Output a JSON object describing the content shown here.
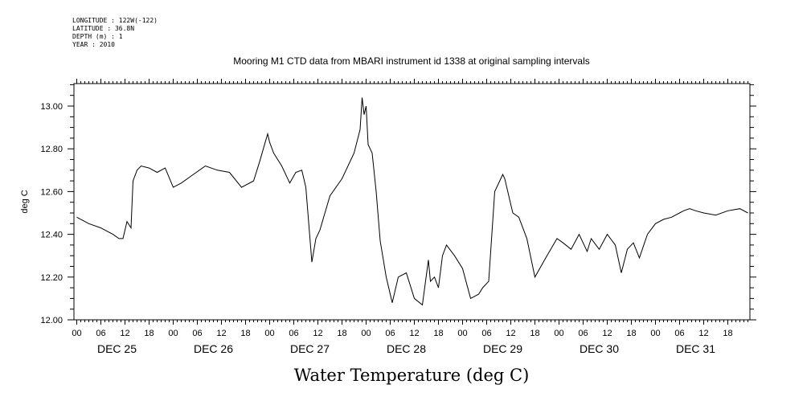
{
  "meta": {
    "longitude": "LONGITUDE : 122W(-122)",
    "latitude": "LATITUDE : 36.8N",
    "depth": "DEPTH (m) : 1",
    "year": "YEAR : 2010"
  },
  "chart_data": {
    "type": "line",
    "title": "Mooring M1 CTD data from MBARI instrument id 1338 at original sampling intervals",
    "ylabel": "deg C",
    "xlabel": "Water Temperature (deg C)",
    "ylim": [
      12.0,
      13.1
    ],
    "yticks": [
      "12.00",
      "12.20",
      "12.40",
      "12.60",
      "12.80",
      "13.00"
    ],
    "xlim": [
      "2010-12-25 00:00",
      "2010-12-31 23:00"
    ],
    "hour_ticks": [
      "00",
      "06",
      "12",
      "18"
    ],
    "day_labels": [
      "DEC 25",
      "DEC 26",
      "DEC 27",
      "DEC 28",
      "DEC 29",
      "DEC 30",
      "DEC 31"
    ],
    "grid": false,
    "series": [
      {
        "x": [
          "2010-12-25 00:00",
          "2010-12-25 03:00",
          "2010-12-25 06:00",
          "2010-12-25 09:00",
          "2010-12-25 10:30",
          "2010-12-25 11:30",
          "2010-12-25 12:30",
          "2010-12-25 13:30",
          "2010-12-25 14:00",
          "2010-12-25 15:00",
          "2010-12-25 16:00",
          "2010-12-25 18:00",
          "2010-12-25 20:00",
          "2010-12-25 22:00",
          "2010-12-26 00:00",
          "2010-12-26 02:00",
          "2010-12-26 05:00",
          "2010-12-26 08:00",
          "2010-12-26 11:00",
          "2010-12-26 14:00",
          "2010-12-26 17:00",
          "2010-12-26 20:00",
          "2010-12-26 21:30",
          "2010-12-26 23:30",
          "2010-12-27 00:00",
          "2010-12-27 01:00",
          "2010-12-27 03:00",
          "2010-12-27 05:00",
          "2010-12-27 06:30",
          "2010-12-27 08:00",
          "2010-12-27 09:00",
          "2010-12-27 10:30",
          "2010-12-27 11:30",
          "2010-12-27 12:30",
          "2010-12-27 15:00",
          "2010-12-27 18:00",
          "2010-12-27 21:00",
          "2010-12-27 22:30",
          "2010-12-27 23:00",
          "2010-12-27 23:30",
          "2010-12-28 00:00",
          "2010-12-28 00:30",
          "2010-12-28 01:30",
          "2010-12-28 02:30",
          "2010-12-28 03:30",
          "2010-12-28 05:00",
          "2010-12-28 06:30",
          "2010-12-28 08:00",
          "2010-12-28 10:00",
          "2010-12-28 12:00",
          "2010-12-28 14:00",
          "2010-12-28 15:30",
          "2010-12-28 16:00",
          "2010-12-28 17:00",
          "2010-12-28 18:00",
          "2010-12-28 19:00",
          "2010-12-28 20:00",
          "2010-12-28 22:00",
          "2010-12-29 00:00",
          "2010-12-29 02:00",
          "2010-12-29 04:00",
          "2010-12-29 05:00",
          "2010-12-29 06:30",
          "2010-12-29 08:00",
          "2010-12-29 10:00",
          "2010-12-29 10:30",
          "2010-12-29 11:30",
          "2010-12-29 12:30",
          "2010-12-29 14:00",
          "2010-12-29 16:00",
          "2010-12-29 18:00",
          "2010-12-29 21:00",
          "2010-12-29 23:30",
          "2010-12-30 01:00",
          "2010-12-30 03:00",
          "2010-12-30 05:00",
          "2010-12-30 07:00",
          "2010-12-30 08:00",
          "2010-12-30 10:00",
          "2010-12-30 12:00",
          "2010-12-30 14:00",
          "2010-12-30 15:30",
          "2010-12-30 17:00",
          "2010-12-30 18:30",
          "2010-12-30 20:00",
          "2010-12-30 22:00",
          "2010-12-31 00:00",
          "2010-12-31 02:00",
          "2010-12-31 04:00",
          "2010-12-31 06:00",
          "2010-12-31 07:00",
          "2010-12-31 08:30",
          "2010-12-31 10:00",
          "2010-12-31 12:00",
          "2010-12-31 15:00",
          "2010-12-31 18:00",
          "2010-12-31 21:00",
          "2010-12-31 23:00"
        ],
        "y": [
          12.48,
          12.45,
          12.43,
          12.4,
          12.38,
          12.38,
          12.46,
          12.43,
          12.65,
          12.7,
          12.72,
          12.71,
          12.69,
          12.71,
          12.62,
          12.64,
          12.68,
          12.72,
          12.7,
          12.69,
          12.62,
          12.65,
          12.74,
          12.87,
          12.83,
          12.78,
          12.72,
          12.64,
          12.69,
          12.7,
          12.62,
          12.27,
          12.38,
          12.42,
          12.58,
          12.66,
          12.78,
          12.89,
          13.04,
          12.96,
          13.0,
          12.82,
          12.78,
          12.6,
          12.37,
          12.2,
          12.08,
          12.2,
          12.22,
          12.1,
          12.07,
          12.28,
          12.18,
          12.2,
          12.15,
          12.3,
          12.35,
          12.3,
          12.24,
          12.1,
          12.12,
          12.15,
          12.18,
          12.6,
          12.68,
          12.66,
          12.58,
          12.5,
          12.48,
          12.38,
          12.2,
          12.3,
          12.38,
          12.36,
          12.33,
          12.4,
          12.32,
          12.38,
          12.33,
          12.4,
          12.35,
          12.22,
          12.33,
          12.36,
          12.29,
          12.4,
          12.45,
          12.47,
          12.48,
          12.5,
          12.51,
          12.52,
          12.51,
          12.5,
          12.49,
          12.51,
          12.52,
          12.5
        ]
      }
    ]
  }
}
